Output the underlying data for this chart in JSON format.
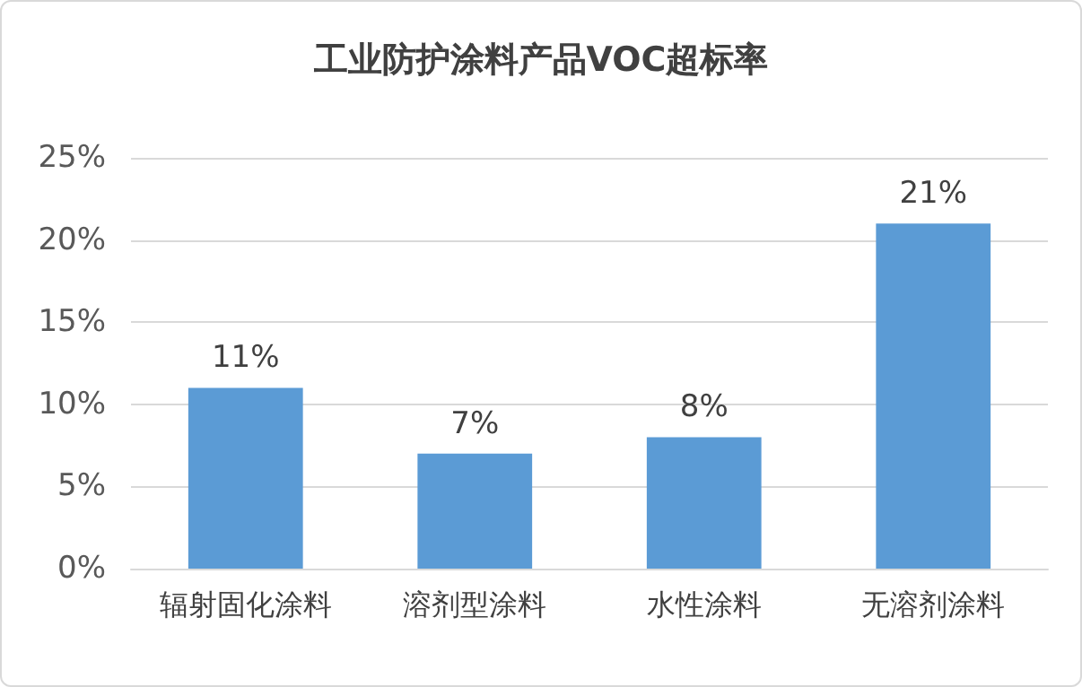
{
  "chart_data": {
    "type": "bar",
    "title": "工业防护涂料产品VOC超标率",
    "categories": [
      "辐射固化涂料",
      "溶剂型涂料",
      "水性涂料",
      "无溶剂涂料"
    ],
    "values": [
      11,
      7,
      8,
      21
    ],
    "color": "#5b9bd5",
    "value_labels": [
      "11%",
      "7%",
      "8%",
      "21%"
    ],
    "ylim": [
      0,
      25
    ],
    "yticks": [
      {
        "value": 0,
        "label": "0%"
      },
      {
        "value": 5,
        "label": "5%"
      },
      {
        "value": 10,
        "label": "10%"
      },
      {
        "value": 15,
        "label": "15%"
      },
      {
        "value": 20,
        "label": "20%"
      },
      {
        "value": 25,
        "label": "25%"
      }
    ],
    "grid": "y"
  }
}
